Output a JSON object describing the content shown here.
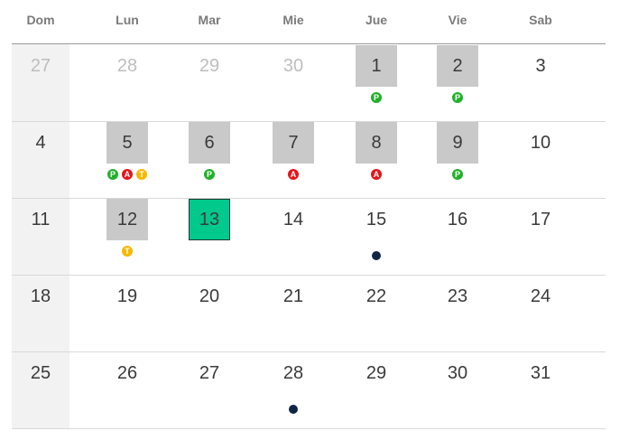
{
  "weekdays": [
    "Dom",
    "Lun",
    "Mar",
    "Mie",
    "Jue",
    "Vie",
    "Sab"
  ],
  "weeks": [
    [
      {
        "day": "27",
        "muted": true
      },
      {
        "day": "28",
        "muted": true
      },
      {
        "day": "29",
        "muted": true
      },
      {
        "day": "30",
        "muted": true
      },
      {
        "day": "1",
        "marked": true,
        "badges": [
          "P"
        ]
      },
      {
        "day": "2",
        "marked": true,
        "badges": [
          "P"
        ]
      },
      {
        "day": "3"
      }
    ],
    [
      {
        "day": "4"
      },
      {
        "day": "5",
        "marked": true,
        "badges": [
          "P",
          "A",
          "T"
        ]
      },
      {
        "day": "6",
        "marked": true,
        "badges": [
          "P"
        ]
      },
      {
        "day": "7",
        "marked": true,
        "badges": [
          "A"
        ]
      },
      {
        "day": "8",
        "marked": true,
        "badges": [
          "A"
        ]
      },
      {
        "day": "9",
        "marked": true,
        "badges": [
          "P"
        ]
      },
      {
        "day": "10"
      }
    ],
    [
      {
        "day": "11"
      },
      {
        "day": "12",
        "marked": true,
        "badges": [
          "T"
        ]
      },
      {
        "day": "13",
        "today": true
      },
      {
        "day": "14"
      },
      {
        "day": "15",
        "dot": true
      },
      {
        "day": "16"
      },
      {
        "day": "17"
      }
    ],
    [
      {
        "day": "18"
      },
      {
        "day": "19"
      },
      {
        "day": "20"
      },
      {
        "day": "21"
      },
      {
        "day": "22"
      },
      {
        "day": "23"
      },
      {
        "day": "24"
      }
    ],
    [
      {
        "day": "25"
      },
      {
        "day": "26"
      },
      {
        "day": "27"
      },
      {
        "day": "28",
        "dot": true
      },
      {
        "day": "29"
      },
      {
        "day": "30"
      },
      {
        "day": "31"
      }
    ]
  ],
  "colors": {
    "today": "#00c98b",
    "marked": "#c9c9c9",
    "badge_P": "#22b02b",
    "badge_A": "#e4151b",
    "badge_T": "#f5b800",
    "event_dot": "#102446"
  }
}
